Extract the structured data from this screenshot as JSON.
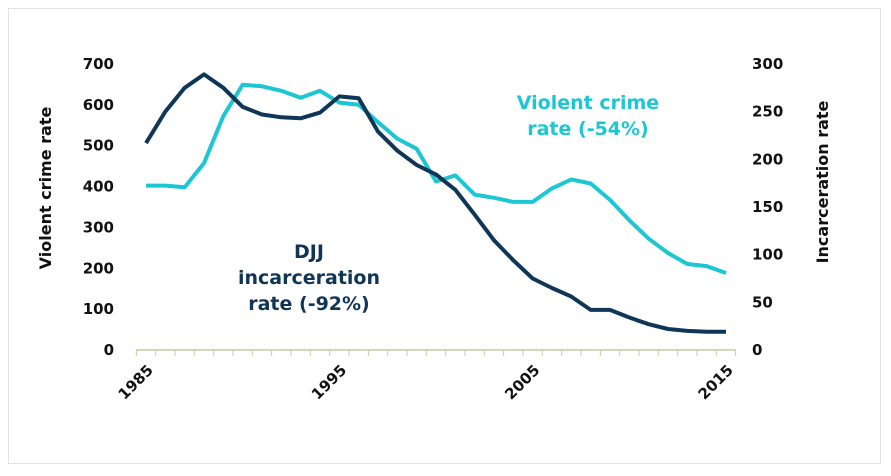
{
  "chart_data": {
    "type": "line",
    "x": [
      1985,
      1986,
      1987,
      1988,
      1989,
      1990,
      1991,
      1992,
      1993,
      1994,
      1995,
      1996,
      1997,
      1998,
      1999,
      2000,
      2001,
      2002,
      2003,
      2004,
      2005,
      2006,
      2007,
      2008,
      2009,
      2010,
      2011,
      2012,
      2013,
      2014,
      2015
    ],
    "xticks": [
      "1985",
      "1995",
      "2005",
      "2015"
    ],
    "xlim": [
      1985,
      2015
    ],
    "ylabel": "Violent crime rate",
    "ylim": [
      0,
      700
    ],
    "yticks": [
      "0",
      "100",
      "200",
      "300",
      "400",
      "500",
      "600",
      "700"
    ],
    "y2label": "Incarceration rate",
    "y2lim": [
      0,
      300
    ],
    "y2ticks": [
      "0",
      "50",
      "100",
      "150",
      "200",
      "250",
      "300"
    ],
    "grid": false,
    "series": [
      {
        "name": "Violent crime rate (-54%)",
        "axis": "left",
        "color": "#1cc6d3",
        "values": [
          400,
          400,
          396,
          455,
          570,
          647,
          643,
          632,
          615,
          632,
          603,
          598,
          555,
          515,
          490,
          410,
          425,
          378,
          370,
          360,
          360,
          393,
          415,
          405,
          365,
          315,
          270,
          235,
          208,
          203,
          186
        ]
      },
      {
        "name": "DJJ incarceration rate (-92%)",
        "axis": "right",
        "color": "#0f3557",
        "values": [
          216,
          249,
          274,
          288,
          274,
          254,
          246,
          243,
          242,
          248,
          265,
          263,
          228,
          208,
          193,
          183,
          167,
          141,
          114,
          93,
          74,
          64,
          55,
          41,
          41,
          33,
          26,
          21,
          19,
          18,
          18
        ]
      }
    ],
    "annotations": {
      "crime": [
        "Violent crime",
        "rate (-54%)"
      ],
      "djj": [
        "DJJ",
        "incarceration",
        "rate (-92%)"
      ]
    },
    "axis_color": "#cfc6a4"
  }
}
